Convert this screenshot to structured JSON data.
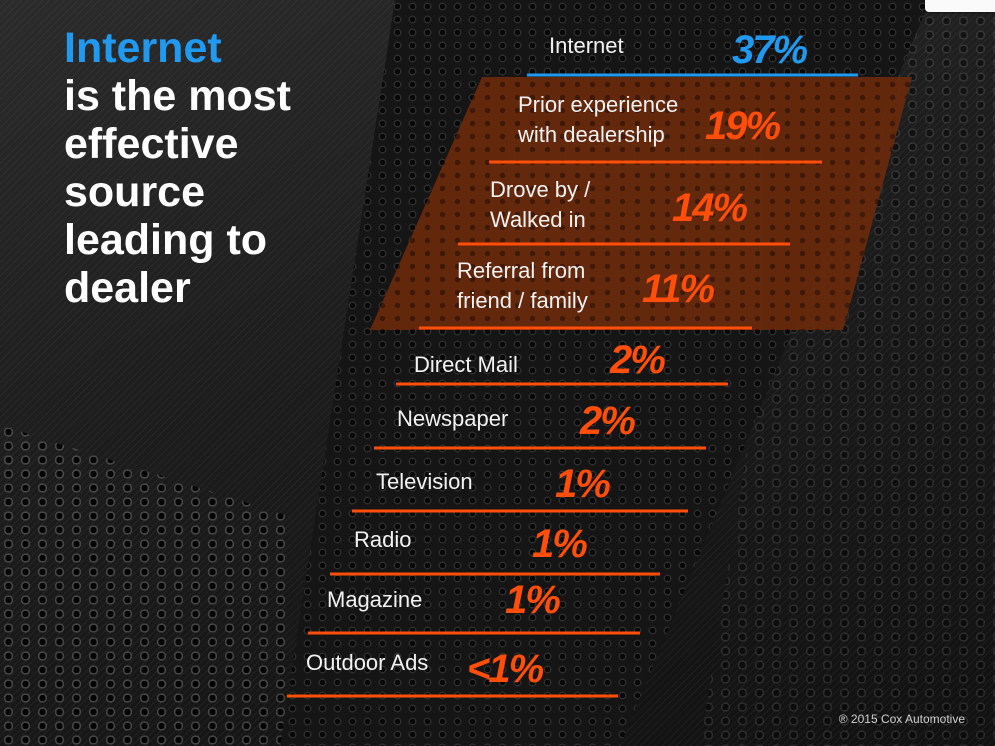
{
  "headline": {
    "accent": "Internet",
    "rest": "is the most effective source leading to dealer"
  },
  "colors": {
    "accent_blue": "#1f9af0",
    "accent_orange": "#ff4e0a",
    "highlight_fill": "#6b2a0c"
  },
  "copyright": "® 2015 Cox Automotive",
  "chart_data": {
    "type": "table",
    "title": "",
    "rows": [
      {
        "label": [
          "Internet"
        ],
        "value": "37%",
        "percent": 37,
        "highlight": "primary"
      },
      {
        "label": [
          "Prior experience",
          "with dealership"
        ],
        "value": "19%",
        "percent": 19,
        "highlight": "group"
      },
      {
        "label": [
          "Drove by /",
          "Walked in"
        ],
        "value": "14%",
        "percent": 14,
        "highlight": "group"
      },
      {
        "label": [
          "Referral from",
          "friend / family"
        ],
        "value": "11%",
        "percent": 11,
        "highlight": "group"
      },
      {
        "label": [
          "Direct Mail"
        ],
        "value": "2%",
        "percent": 2,
        "highlight": "none"
      },
      {
        "label": [
          "Newspaper"
        ],
        "value": "2%",
        "percent": 2,
        "highlight": "none"
      },
      {
        "label": [
          "Television"
        ],
        "value": "1%",
        "percent": 1,
        "highlight": "none"
      },
      {
        "label": [
          "Radio"
        ],
        "value": "1%",
        "percent": 1,
        "highlight": "none"
      },
      {
        "label": [
          "Magazine"
        ],
        "value": "1%",
        "percent": 1,
        "highlight": "none"
      },
      {
        "label": [
          "Outdoor Ads"
        ],
        "value": "<1%",
        "percent": 0.5,
        "highlight": "none"
      }
    ]
  }
}
